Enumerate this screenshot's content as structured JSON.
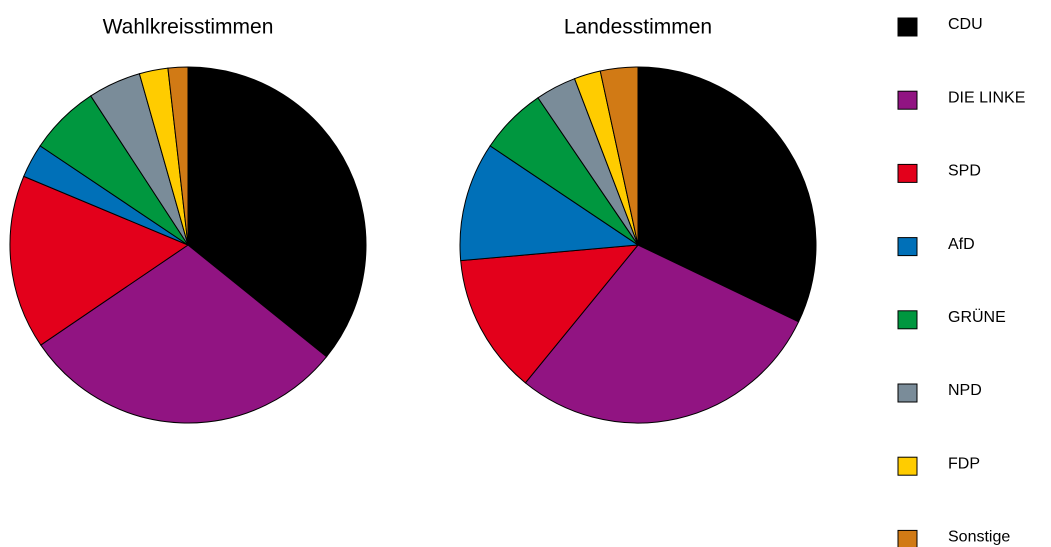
{
  "chart_data": [
    {
      "type": "pie",
      "title": "Wahlkreisstimmen",
      "categories": [
        "CDU",
        "DIE LINKE",
        "SPD",
        "AfD",
        "GRÜNE",
        "NPD",
        "FDP",
        "Sonstige"
      ],
      "colors": [
        "#000000",
        "#911482",
        "#e3001b",
        "#0070b8",
        "#00973f",
        "#7a8c99",
        "#ffcc00",
        "#d17a15"
      ],
      "values": [
        35.8,
        29.7,
        15.8,
        3.1,
        6.4,
        4.8,
        2.6,
        1.8
      ]
    },
    {
      "type": "pie",
      "title": "Landesstimmen",
      "values": [
        32.1,
        28.8,
        12.7,
        10.8,
        6.1,
        3.7,
        2.4,
        3.4
      ]
    }
  ]
}
